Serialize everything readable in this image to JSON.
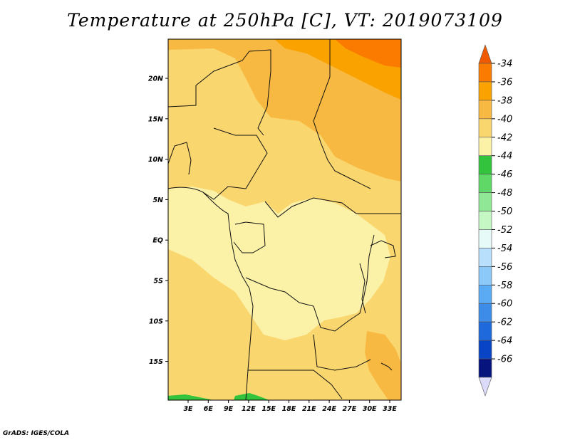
{
  "title": "Temperature at 250hPa [C], VT: 2019073109",
  "credit": "GrADS: IGES/COLA",
  "lat_ticks": [
    "20N",
    "15N",
    "10N",
    "5N",
    "EQ",
    "5S",
    "10S",
    "15S"
  ],
  "lon_ticks": [
    "3E",
    "6E",
    "9E",
    "12E",
    "15E",
    "18E",
    "21E",
    "24E",
    "27E",
    "30E",
    "33E"
  ],
  "colorbar": {
    "labels": [
      "-34",
      "-36",
      "-38",
      "-40",
      "-42",
      "-44",
      "-46",
      "-48",
      "-50",
      "-52",
      "-54",
      "-56",
      "-58",
      "-60",
      "-62",
      "-64",
      "-66"
    ],
    "colors": [
      "#f05a00",
      "#fb7b00",
      "#f9a200",
      "#f7b941",
      "#fad66e",
      "#fbf2a8",
      "#33c33d",
      "#60d868",
      "#90e896",
      "#c4f7c4",
      "#e6faf8",
      "#b8e0fc",
      "#8cc8f8",
      "#5aabf4",
      "#3c8ce8",
      "#1e6adc",
      "#0a44c6",
      "#08147e",
      "#dcdcfa"
    ]
  }
}
